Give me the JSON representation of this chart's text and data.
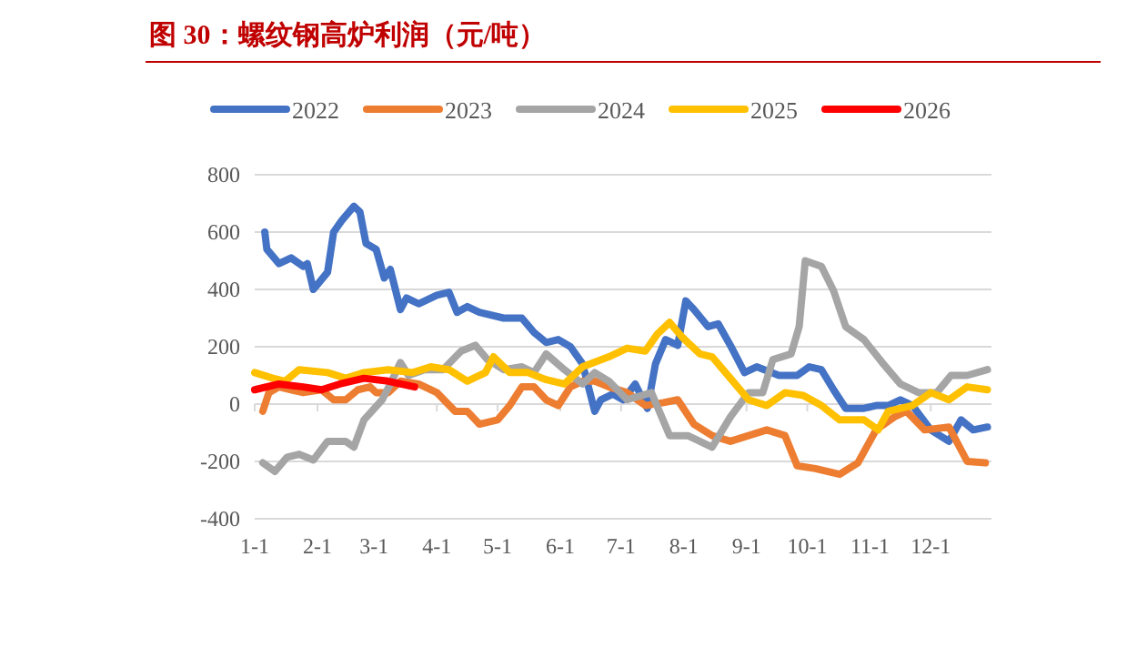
{
  "chart_data": {
    "type": "line",
    "title": "图 30：螺纹钢高炉利润（元/吨）",
    "legend": "top",
    "grid": "y",
    "line_style": "solid",
    "marker": "none",
    "xlim": [
      "--01-01",
      "--12-31"
    ],
    "xticks": [
      {
        "value": "--01-01",
        "label": "1-1"
      },
      {
        "value": "--02-01",
        "label": "2-1"
      },
      {
        "value": "--03-01",
        "label": "3-1"
      },
      {
        "value": "--04-01",
        "label": "4-1"
      },
      {
        "value": "--05-01",
        "label": "5-1"
      },
      {
        "value": "--06-01",
        "label": "6-1"
      },
      {
        "value": "--07-01",
        "label": "7-1"
      },
      {
        "value": "--08-01",
        "label": "8-1"
      },
      {
        "value": "--09-01",
        "label": "9-1"
      },
      {
        "value": "--10-01",
        "label": "10-1"
      },
      {
        "value": "--11-01",
        "label": "11-1"
      },
      {
        "value": "--12-01",
        "label": "12-1"
      }
    ],
    "ylim": [
      -400,
      800
    ],
    "yticks": [
      -400,
      -200,
      0,
      200,
      400,
      600,
      800
    ],
    "series": [
      {
        "name": "2022",
        "color": "#4472c4",
        "x": [
          "--01-06",
          "--01-07",
          "--01-13",
          "--01-19",
          "--01-25",
          "--01-27",
          "--01-30",
          "--02-06",
          "--02-09",
          "--02-13",
          "--02-19",
          "--02-22",
          "--02-25",
          "--03-02",
          "--03-06",
          "--03-09",
          "--03-14",
          "--03-17",
          "--03-23",
          "--04-01",
          "--04-07",
          "--04-11",
          "--04-16",
          "--04-22",
          "--05-04",
          "--05-13",
          "--05-19",
          "--05-25",
          "--05-31",
          "--06-06",
          "--06-12",
          "--06-18",
          "--06-21",
          "--06-27",
          "--07-02",
          "--07-08",
          "--07-14",
          "--07-18",
          "--07-23",
          "--07-29",
          "--08-02",
          "--08-06",
          "--08-13",
          "--08-18",
          "--08-24",
          "--08-31",
          "--09-06",
          "--09-17",
          "--09-26",
          "--10-02",
          "--10-08",
          "--10-14",
          "--10-20",
          "--10-29",
          "--11-04",
          "--11-10",
          "--11-16",
          "--11-22",
          "--12-01",
          "--12-10",
          "--12-16",
          "--12-22",
          "--12-29"
        ],
        "values": [
          600,
          540,
          490,
          510,
          480,
          490,
          400,
          460,
          600,
          640,
          690,
          670,
          560,
          540,
          440,
          470,
          330,
          370,
          350,
          380,
          390,
          320,
          340,
          320,
          300,
          300,
          250,
          215,
          225,
          200,
          140,
          -25,
          15,
          35,
          15,
          70,
          -15,
          140,
          225,
          205,
          360,
          330,
          270,
          280,
          205,
          110,
          130,
          100,
          100,
          130,
          120,
          50,
          -15,
          -15,
          -5,
          -5,
          15,
          -5,
          -90,
          -130,
          -55,
          -90,
          -80
        ]
      },
      {
        "name": "2023",
        "color": "#ed7d31",
        "x": [
          "--01-05",
          "--01-08",
          "--01-13",
          "--01-19",
          "--01-25",
          "--02-03",
          "--02-09",
          "--02-15",
          "--02-21",
          "--02-27",
          "--03-02",
          "--03-08",
          "--03-14",
          "--03-23",
          "--04-01",
          "--04-10",
          "--04-16",
          "--04-22",
          "--05-01",
          "--05-07",
          "--05-13",
          "--05-19",
          "--05-25",
          "--05-31",
          "--06-06",
          "--06-12",
          "--06-18",
          "--06-25",
          "--07-04",
          "--07-13",
          "--07-22",
          "--07-29",
          "--08-06",
          "--08-15",
          "--08-24",
          "--09-02",
          "--09-11",
          "--09-20",
          "--09-26",
          "--10-05",
          "--10-17",
          "--10-26",
          "--11-04",
          "--11-13",
          "--11-19",
          "--11-28",
          "--12-10",
          "--12-19",
          "--12-28"
        ],
        "values": [
          -25,
          40,
          60,
          50,
          40,
          50,
          15,
          15,
          50,
          60,
          40,
          40,
          80,
          70,
          40,
          -25,
          -25,
          -70,
          -55,
          -5,
          60,
          60,
          15,
          -5,
          60,
          80,
          80,
          60,
          40,
          -5,
          5,
          15,
          -70,
          -110,
          -130,
          -110,
          -90,
          -110,
          -215,
          -225,
          -245,
          -205,
          -90,
          -45,
          -25,
          -90,
          -80,
          -200,
          -205
        ]
      },
      {
        "name": "2024",
        "color": "#a5a5a5",
        "x": [
          "--01-05",
          "--01-11",
          "--01-17",
          "--01-23",
          "--01-30",
          "--02-06",
          "--02-15",
          "--02-19",
          "--02-24",
          "--03-05",
          "--03-09",
          "--03-14",
          "--03-18",
          "--03-26",
          "--04-04",
          "--04-13",
          "--04-20",
          "--04-26",
          "--05-04",
          "--05-13",
          "--05-19",
          "--05-25",
          "--06-03",
          "--06-12",
          "--06-18",
          "--06-25",
          "--07-04",
          "--07-16",
          "--07-25",
          "--08-03",
          "--08-15",
          "--08-24",
          "--09-02",
          "--09-09",
          "--09-14",
          "--09-23",
          "--09-27",
          "--09-30",
          "--10-08",
          "--10-14",
          "--10-20",
          "--10-29",
          "--11-07",
          "--11-16",
          "--11-25",
          "--12-04",
          "--12-11",
          "--12-19",
          "--12-29"
        ],
        "values": [
          -205,
          -235,
          -185,
          -175,
          -195,
          -130,
          -130,
          -150,
          -55,
          15,
          70,
          145,
          100,
          120,
          120,
          185,
          205,
          155,
          120,
          130,
          110,
          175,
          120,
          70,
          110,
          80,
          15,
          40,
          -110,
          -110,
          -150,
          -45,
          40,
          40,
          155,
          175,
          270,
          500,
          480,
          395,
          270,
          225,
          145,
          70,
          40,
          40,
          100,
          100,
          120
        ]
      },
      {
        "name": "2025",
        "color": "#ffc000",
        "x": [
          "--01-01",
          "--01-10",
          "--01-16",
          "--01-23",
          "--02-06",
          "--02-15",
          "--02-24",
          "--03-08",
          "--03-20",
          "--03-29",
          "--04-07",
          "--04-16",
          "--04-25",
          "--04-29",
          "--05-07",
          "--05-16",
          "--05-25",
          "--06-03",
          "--06-12",
          "--06-25",
          "--07-04",
          "--07-13",
          "--07-19",
          "--07-25",
          "--07-31",
          "--08-09",
          "--08-15",
          "--08-24",
          "--09-02",
          "--09-11",
          "--09-20",
          "--09-29",
          "--10-08",
          "--10-17",
          "--10-29",
          "--11-05",
          "--11-10",
          "--11-22",
          "--12-01",
          "--12-10",
          "--12-19",
          "--12-29"
        ],
        "values": [
          110,
          90,
          80,
          120,
          110,
          90,
          110,
          120,
          110,
          130,
          120,
          80,
          110,
          165,
          110,
          110,
          85,
          70,
          130,
          165,
          195,
          185,
          245,
          285,
          235,
          175,
          165,
          90,
          15,
          -5,
          40,
          30,
          -5,
          -55,
          -55,
          -90,
          -25,
          -5,
          40,
          15,
          60,
          50
        ]
      },
      {
        "name": "2026",
        "color": "#ff0000",
        "x": [
          "--01-01",
          "--01-13",
          "--01-25",
          "--02-03",
          "--02-12",
          "--02-24",
          "--03-08",
          "--03-21"
        ],
        "values": [
          50,
          70,
          60,
          50,
          70,
          90,
          80,
          60
        ]
      }
    ]
  }
}
